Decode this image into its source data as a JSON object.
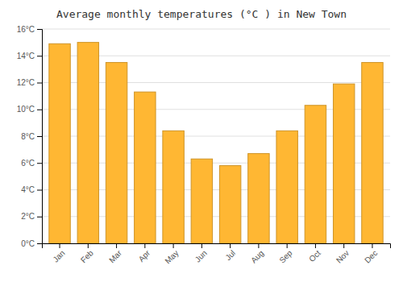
{
  "chart_data": {
    "type": "bar",
    "title": "Average monthly temperatures (°C ) in New Town",
    "categories": [
      "Jan",
      "Feb",
      "Mar",
      "Apr",
      "May",
      "Jun",
      "Jul",
      "Aug",
      "Sep",
      "Oct",
      "Nov",
      "Dec"
    ],
    "values": [
      14.9,
      15.0,
      13.5,
      11.3,
      8.4,
      6.3,
      5.8,
      6.7,
      8.4,
      10.3,
      11.9,
      13.5
    ],
    "color": "#FFB733",
    "ylim": [
      0,
      16
    ],
    "yticks": [
      {
        "value": 0,
        "label": "0°C"
      },
      {
        "value": 2,
        "label": "2°C"
      },
      {
        "value": 4,
        "label": "4°C"
      },
      {
        "value": 6,
        "label": "6°C"
      },
      {
        "value": 8,
        "label": "8°C"
      },
      {
        "value": 10,
        "label": "10°C"
      },
      {
        "value": 12,
        "label": "12°C"
      },
      {
        "value": 14,
        "label": "14°C"
      },
      {
        "value": 16,
        "label": "16°C"
      }
    ],
    "grid": true
  }
}
